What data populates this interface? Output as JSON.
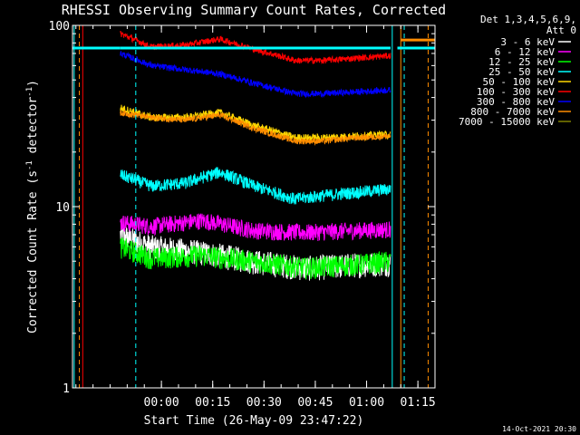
{
  "chart_data": {
    "type": "line",
    "title": "RHESSI Observing Summary Count Rates, Corrected",
    "xlabel": "Start Time (26-May-09 23:47:22)",
    "ylabel_main": "Corrected Count Rate (s",
    "ylabel_sup1": "-1",
    "ylabel_mid": " detector",
    "ylabel_sup2": "-1",
    "ylabel_end": ")",
    "yscale": "log",
    "ylim": [
      1,
      100
    ],
    "xlim_minutes": [
      -13,
      93
    ],
    "x_ticks": [
      {
        "label": "00:00",
        "min": 13
      },
      {
        "label": "00:15",
        "min": 28
      },
      {
        "label": "00:30",
        "min": 43
      },
      {
        "label": "00:45",
        "min": 58
      },
      {
        "label": "01:00",
        "min": 73
      },
      {
        "label": "01:15",
        "min": 88
      }
    ],
    "y_ticks": [
      {
        "label": "100",
        "value": 100
      },
      {
        "label": "10",
        "value": 10
      },
      {
        "label": "1",
        "value": 1
      }
    ],
    "legend_header": [
      "Det 1,3,4,5,6,9,",
      "Att 0"
    ],
    "series": [
      {
        "name": "3 - 6 keV",
        "color": "#ffffff",
        "values": [
          [
            1,
            7
          ],
          [
            10,
            6
          ],
          [
            25,
            5.6
          ],
          [
            40,
            5
          ],
          [
            55,
            4.6
          ],
          [
            70,
            4.8
          ],
          [
            80,
            4.9
          ]
        ]
      },
      {
        "name": "6 - 12 keV",
        "color": "#ff00ff",
        "values": [
          [
            1,
            8.2
          ],
          [
            10,
            7.8
          ],
          [
            25,
            8.4
          ],
          [
            40,
            7.4
          ],
          [
            55,
            7.2
          ],
          [
            70,
            7.4
          ],
          [
            80,
            7.5
          ]
        ]
      },
      {
        "name": "12 - 25 keV",
        "color": "#00ff00",
        "values": [
          [
            1,
            6
          ],
          [
            10,
            5.2
          ],
          [
            25,
            5.4
          ],
          [
            40,
            5
          ],
          [
            55,
            4.6
          ],
          [
            70,
            4.8
          ],
          [
            80,
            5
          ]
        ]
      },
      {
        "name": "25 - 50 keV",
        "color": "#00ffff",
        "values": [
          [
            1,
            15
          ],
          [
            10,
            13
          ],
          [
            20,
            13.5
          ],
          [
            30,
            15.5
          ],
          [
            40,
            13
          ],
          [
            52,
            11
          ],
          [
            60,
            11.5
          ],
          [
            70,
            12
          ],
          [
            80,
            12.5
          ]
        ]
      },
      {
        "name": "50 - 100 keV",
        "color": "#ffd700",
        "values": [
          [
            1,
            35
          ],
          [
            10,
            31
          ],
          [
            20,
            31
          ],
          [
            30,
            33
          ],
          [
            40,
            28
          ],
          [
            52,
            24
          ],
          [
            60,
            24
          ],
          [
            70,
            24.5
          ],
          [
            80,
            25
          ]
        ]
      },
      {
        "name": "100 - 300 keV",
        "color": "#ff0000",
        "values": [
          [
            1,
            90
          ],
          [
            10,
            76
          ],
          [
            20,
            78
          ],
          [
            30,
            84
          ],
          [
            40,
            74
          ],
          [
            52,
            64
          ],
          [
            60,
            64
          ],
          [
            70,
            66
          ],
          [
            80,
            68
          ]
        ]
      },
      {
        "name": "300 - 800 keV",
        "color": "#0000ff",
        "values": [
          [
            1,
            70
          ],
          [
            10,
            60
          ],
          [
            20,
            57
          ],
          [
            30,
            54
          ],
          [
            40,
            48
          ],
          [
            52,
            42
          ],
          [
            60,
            42
          ],
          [
            70,
            43
          ],
          [
            80,
            44
          ]
        ]
      },
      {
        "name": "800 - 7000 keV",
        "color": "#ff8c00",
        "values": [
          [
            1,
            33
          ],
          [
            10,
            31
          ],
          [
            20,
            30
          ],
          [
            30,
            32
          ],
          [
            40,
            27
          ],
          [
            52,
            23
          ],
          [
            60,
            23
          ],
          [
            70,
            24
          ],
          [
            80,
            24.5
          ]
        ]
      },
      {
        "name": "7000 - 15000 keV",
        "color": "#808000",
        "values": []
      }
    ],
    "vertical_markers": [
      {
        "min": -12.5,
        "color": "#00ffff",
        "style": "solid"
      },
      {
        "min": -11,
        "color": "#ff8c00",
        "style": "dashed"
      },
      {
        "min": -10,
        "color": "#ff0000",
        "style": "solid"
      },
      {
        "min": 5.5,
        "color": "#00ffff",
        "style": "dashed"
      },
      {
        "min": 80.5,
        "color": "#00ffff",
        "style": "solid"
      },
      {
        "min": 83,
        "color": "#ff8c00",
        "style": "solid"
      },
      {
        "min": 84,
        "color": "#00ffff",
        "style": "dashed"
      },
      {
        "min": 91,
        "color": "#ff8c00",
        "style": "dashed"
      }
    ],
    "horizontal_bars": [
      {
        "from_min": -13,
        "to_min": 1,
        "value": 75,
        "color": "#00ffff"
      },
      {
        "from_min": 1,
        "to_min": 80,
        "value": 75,
        "color": "#00ffff"
      },
      {
        "from_min": 82,
        "to_min": 93,
        "value": 75,
        "color": "#00ffff"
      },
      {
        "from_min": 83,
        "to_min": 93,
        "value": 83,
        "color": "#ff8c00"
      }
    ]
  },
  "timestamp": "14-Oct-2021 20:30"
}
